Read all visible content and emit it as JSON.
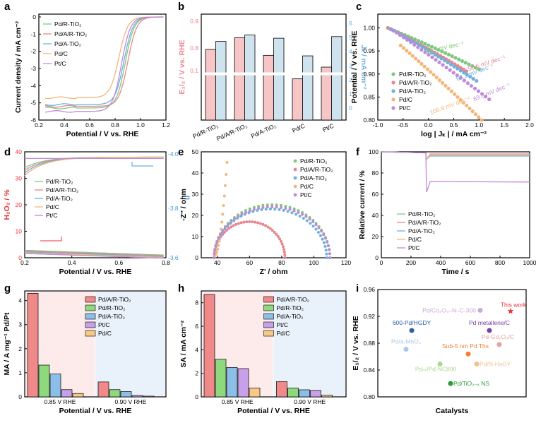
{
  "chart_data": [
    {
      "panel": "a",
      "type": "line",
      "xlabel": "Potential / V vs. RHE",
      "ylabel": "Current density / mA cm⁻²",
      "xlim": [
        0.2,
        1.2
      ],
      "ylim": [
        -6,
        0
      ],
      "xticks": [
        "0.2",
        "0.4",
        "0.6",
        "0.8",
        "1.0",
        "1.2"
      ],
      "yticks": [
        "0",
        "-1",
        "-2",
        "-3",
        "-4",
        "-5",
        "-6"
      ],
      "legend": [
        "Pd/R-TiO₂",
        "Pd/A/R-TiO₂",
        "Pd/A-TiO₂",
        "Pd/C",
        "Pt/C"
      ],
      "series": [
        {
          "name": "Pd/R-TiO₂",
          "color": "#7ec87e",
          "limit": -5.3,
          "half": 0.92
        },
        {
          "name": "Pd/A/R-TiO₂",
          "color": "#e8868e",
          "limit": -5.2,
          "half": 0.94
        },
        {
          "name": "Pd/A-TiO₂",
          "color": "#6db0dc",
          "limit": -5.1,
          "half": 0.91
        },
        {
          "name": "Pd/C",
          "color": "#f4b678",
          "limit": -4.7,
          "half": 0.87
        },
        {
          "name": "Pt/C",
          "color": "#c08ad8",
          "limit": -5.5,
          "half": 0.89
        }
      ]
    },
    {
      "panel": "b",
      "type": "bar",
      "ylabel": "E₁/₂ / V vs. RHE",
      "y2label": "Jₖ / mA cm⁻²",
      "categories": [
        "Pd/R-TiO₂",
        "Pd/A/R-TiO₂",
        "Pd/A-TiO₂",
        "Pd/C",
        "Pt/C"
      ],
      "yticks": [
        "0.9",
        "0.8",
        "0.1"
      ],
      "y2ticks": [
        "6",
        "5",
        "4",
        "3",
        "2",
        "1",
        "0"
      ],
      "series": [
        {
          "name": "E₁/₂",
          "color": "#f6c6c6",
          "values": [
            0.92,
            0.94,
            0.91,
            0.87,
            0.89
          ]
        },
        {
          "name": "Jₖ",
          "color": "#cfe3ef",
          "values": [
            4.9,
            5.3,
            5.1,
            4.0,
            5.2
          ]
        }
      ]
    },
    {
      "panel": "c",
      "type": "line",
      "xlabel": "log | Jₖ | / mA cm⁻²",
      "ylabel": "Potential / V vs. RHE",
      "xlim": [
        -1.0,
        2.0
      ],
      "ylim": [
        0.8,
        1.03
      ],
      "xticks": [
        "-1.0",
        "-0.5",
        "0.0",
        "0.5",
        "1.0",
        "1.5",
        "2.0"
      ],
      "yticks": [
        "1.00",
        "0.95",
        "0.90",
        "0.85",
        "0.80"
      ],
      "legend": [
        "Pd/R-TiO₂",
        "Pd/A/R-TiO₂",
        "Pd/A-TiO₂",
        "Pd/C",
        "Pt/C"
      ],
      "annotations": [
        "54.9 mV dec⁻¹",
        "50.6 mV dec⁻¹",
        "63.3 mV dec⁻¹",
        "106.9 mV dec⁻¹",
        "69.8 mV dec⁻¹"
      ],
      "series": [
        {
          "name": "Pd/R-TiO₂",
          "color": "#7ec87e",
          "x": [
            -0.8,
            1.0
          ],
          "y": [
            1.0,
            0.92
          ]
        },
        {
          "name": "Pd/A/R-TiO₂",
          "color": "#e8868e",
          "x": [
            -0.8,
            0.75
          ],
          "y": [
            1.0,
            0.916
          ]
        },
        {
          "name": "Pd/A-TiO₂",
          "color": "#6db0dc",
          "x": [
            -0.75,
            0.95
          ],
          "y": [
            0.998,
            0.895
          ]
        },
        {
          "name": "Pd/C",
          "color": "#f4b678",
          "x": [
            -0.55,
            1.05
          ],
          "y": [
            0.962,
            0.81
          ]
        },
        {
          "name": "Pt/C",
          "color": "#c08ad8",
          "x": [
            -0.7,
            1.2
          ],
          "y": [
            0.995,
            0.855
          ]
        }
      ]
    },
    {
      "panel": "d",
      "type": "line",
      "xlabel": "Potential / V vs. RHE",
      "ylabel": "H₂O₂ / %",
      "y2label": "n",
      "xlim": [
        0.2,
        0.8
      ],
      "ylim": [
        0,
        40
      ],
      "y2lim": [
        3.6,
        4.0
      ],
      "xticks": [
        "0.2",
        "0.4",
        "0.6",
        "0.8"
      ],
      "yticks": [
        "0",
        "10",
        "20",
        "30",
        "40"
      ],
      "y2ticks": [
        "-3.6",
        "-3.8",
        "-4.0"
      ],
      "legend": [
        "Pd/R-TiO₂",
        "Pd/A/R-TiO₂",
        "Pd/A-TiO₂",
        "Pd/C",
        "Pt/C"
      ]
    },
    {
      "panel": "e",
      "type": "scatter",
      "xlabel": "Z' / ohm",
      "ylabel": "-Z'' / ohm",
      "xlim": [
        30,
        120
      ],
      "ylim": [
        0,
        50
      ],
      "xticks": [
        "40",
        "60",
        "80",
        "100",
        "120"
      ],
      "yticks": [
        "0",
        "10",
        "20",
        "30",
        "40",
        "50"
      ],
      "legend": [
        "Pd/R-TiO₂",
        "Pd/A/R-TiO₂",
        "Pd/A-TiO₂",
        "Pd/C",
        "Pt/C"
      ]
    },
    {
      "panel": "f",
      "type": "line",
      "xlabel": "Time / s",
      "ylabel": "Relative current / %",
      "xlim": [
        0,
        1000
      ],
      "ylim": [
        0,
        100
      ],
      "xticks": [
        "0",
        "200",
        "400",
        "600",
        "800",
        "1000"
      ],
      "yticks": [
        "0",
        "20",
        "40",
        "60",
        "80",
        "100"
      ],
      "legend": [
        "Pd/R-TiO₂",
        "Pd/A/R-TiO₂",
        "Pd/A-TiO₂",
        "Pd/C",
        "Pt/C"
      ]
    },
    {
      "panel": "g",
      "type": "bar",
      "xlabel": "Potential / V vs. RHE",
      "ylabel": "MA / A mg⁻¹ Pd/Pt",
      "categories": [
        "0.85 V RHE",
        "0.90 V RHE"
      ],
      "yticks": [
        "0",
        "1",
        "2",
        "3",
        "4"
      ],
      "series": [
        {
          "name": "Pd/A/R-TiO₂",
          "values": [
            4.3,
            0.62
          ]
        },
        {
          "name": "Pd/R-TiO₂",
          "values": [
            1.32,
            0.3
          ]
        },
        {
          "name": "Pd/A-TiO₂",
          "values": [
            0.95,
            0.22
          ]
        },
        {
          "name": "Pt/C",
          "values": [
            0.3,
            0.06
          ]
        },
        {
          "name": "Pd/C",
          "values": [
            0.14,
            0.03
          ]
        }
      ]
    },
    {
      "panel": "h",
      "type": "bar",
      "xlabel": "Potential / V vs. RHE",
      "ylabel": "SA / mA cm⁻²",
      "categories": [
        "0.85 V RHE",
        "0.90 V RHE"
      ],
      "yticks": [
        "0",
        "2",
        "4",
        "6",
        "8"
      ],
      "series": [
        {
          "name": "Pd/A/R-TiO₂",
          "values": [
            8.7,
            1.3
          ]
        },
        {
          "name": "Pd/R-TiO₂",
          "values": [
            3.2,
            0.75
          ]
        },
        {
          "name": "Pd/A-TiO₂",
          "values": [
            2.5,
            0.6
          ]
        },
        {
          "name": "Pt/C",
          "values": [
            2.4,
            0.55
          ]
        },
        {
          "name": "Pd/C",
          "values": [
            0.75,
            0.15
          ]
        }
      ]
    },
    {
      "panel": "i",
      "type": "scatter",
      "xlabel": "Catalysts",
      "ylabel": "E₁/₂ / V vs. RHE",
      "ylim": [
        0.8,
        0.96
      ],
      "yticks": [
        "0.96",
        "0.92",
        "0.88",
        "0.84",
        "0.80"
      ],
      "points": [
        {
          "label": "This work",
          "y": 0.928,
          "color": "#e8303a"
        },
        {
          "label": "Pd/Co₃O₄–N–C-300",
          "y": 0.929,
          "color": "#c8a8d8"
        },
        {
          "label": "600-Pd/HGDY",
          "y": 0.899,
          "color": "#2b5ea8"
        },
        {
          "label": "Pd metallene/C",
          "y": 0.899,
          "color": "#7a3fa0"
        },
        {
          "label": "Pd-Gd₂O₃/C",
          "y": 0.878,
          "color": "#e8a0a0"
        },
        {
          "label": "Pd/a-MnO₂",
          "y": 0.871,
          "color": "#a8c8e8"
        },
        {
          "label": "Sub-5 nm Pd Ths",
          "y": 0.864,
          "color": "#f08030"
        },
        {
          "label": "Pd/N-HsGY",
          "y": 0.849,
          "color": "#f0c090"
        },
        {
          "label": "Pdₙₜ/Pd-NC800",
          "y": 0.849,
          "color": "#a8d890"
        },
        {
          "label": "Pd/TiO₂₋ₓ NS",
          "y": 0.82,
          "color": "#2a9a3a"
        }
      ]
    }
  ],
  "panel_letters": [
    "a",
    "b",
    "c",
    "d",
    "e",
    "f",
    "g",
    "h",
    "i"
  ]
}
